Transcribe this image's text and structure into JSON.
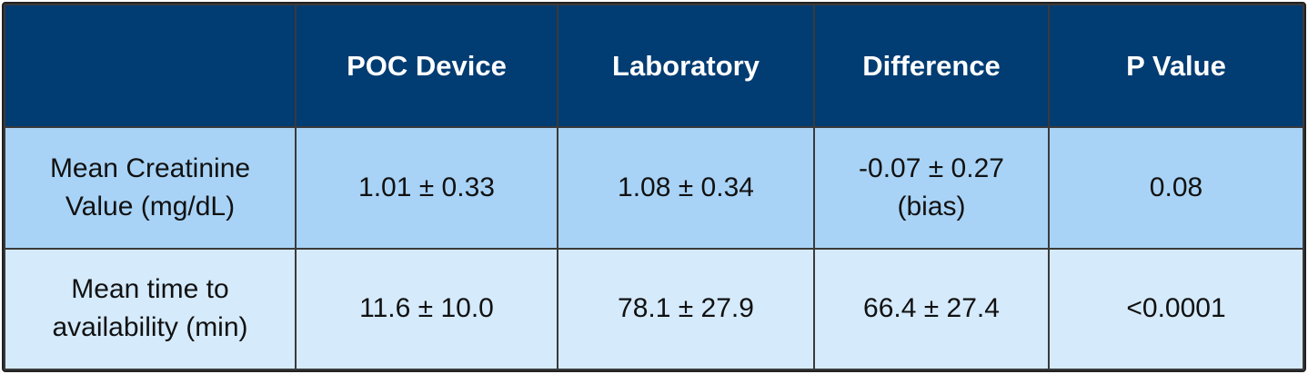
{
  "table": {
    "header": [
      "POC Device",
      "Laboratory",
      "Difference",
      "P Value"
    ],
    "rows": [
      [
        [
          "Mean Creatinine",
          "Value (mg/dL)"
        ],
        [
          "1.01 ± 0.33"
        ],
        [
          "1.08 ± 0.34"
        ],
        [
          "-0.07 ± 0.27",
          "(bias)"
        ],
        [
          "0.08"
        ]
      ],
      [
        [
          "Mean time to",
          "availability (min)"
        ],
        [
          "11.6 ± 10.0"
        ],
        [
          "78.1 ± 27.9"
        ],
        [
          "66.4 ± 27.4"
        ],
        [
          "<0.0001"
        ]
      ]
    ]
  }
}
